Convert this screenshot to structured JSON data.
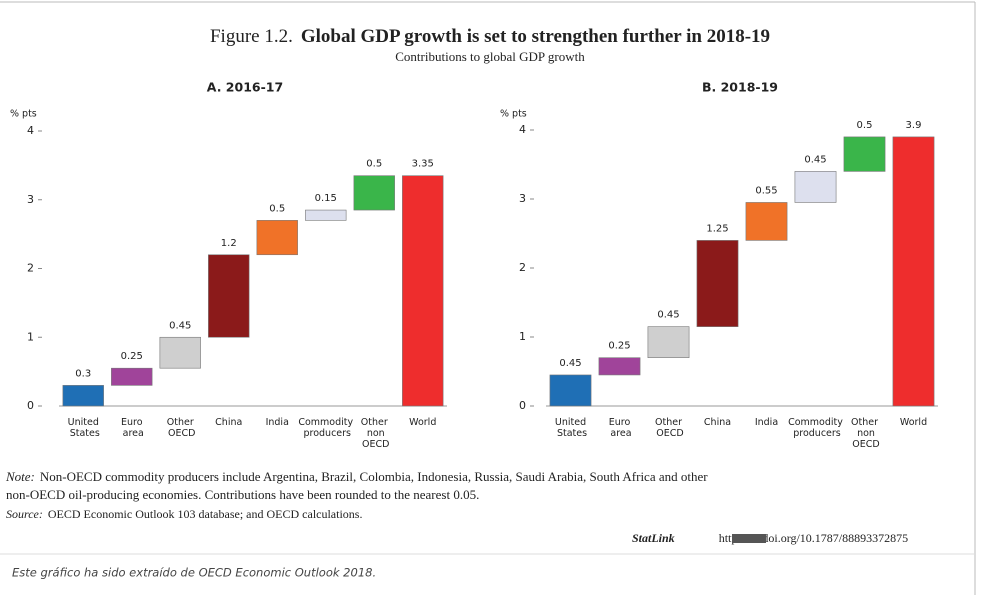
{
  "header": {
    "figure_label": "Figure 1.2.",
    "title": "Global GDP growth is set to strengthen further in 2018-19",
    "subtitle": "Contributions to global GDP growth"
  },
  "chart_data": [
    {
      "type": "waterfall",
      "title": "A. 2016-17",
      "y_label": "% pts",
      "categories": [
        "United States",
        "Euro area",
        "Other OECD",
        "China",
        "India",
        "Commodity producers",
        "Other non OECD",
        "World"
      ],
      "values": [
        0.3,
        0.25,
        0.45,
        1.2,
        0.5,
        0.15,
        0.5,
        3.35
      ],
      "colors": [
        "#1f6fb5",
        "#a0449a",
        "#cfcfcf",
        "#8b1a1a",
        "#f07228",
        "#dde0ee",
        "#3ab54a",
        "#ee2d2d"
      ],
      "ylim": [
        0,
        4
      ],
      "yticks": [
        0,
        1,
        2,
        3,
        4
      ]
    },
    {
      "type": "waterfall",
      "title": "B. 2018-19",
      "y_label": "% pts",
      "categories": [
        "United States",
        "Euro area",
        "Other OECD",
        "China",
        "India",
        "Commodity producers",
        "Other non OECD",
        "World"
      ],
      "values": [
        0.45,
        0.25,
        0.45,
        1.25,
        0.55,
        0.45,
        0.5,
        3.9
      ],
      "colors": [
        "#1f6fb5",
        "#a0449a",
        "#cfcfcf",
        "#8b1a1a",
        "#f07228",
        "#dde0ee",
        "#3ab54a",
        "#ee2d2d"
      ],
      "ylim": [
        0,
        4
      ],
      "yticks": [
        0,
        1,
        2,
        3,
        4
      ]
    }
  ],
  "notes": {
    "note_label": "Note:",
    "note_line1": "Non-OECD commodity producers include Argentina, Brazil, Colombia, Indonesia, Russia, Saudi Arabia, South Africa and other",
    "note_line2": "non-OECD oil-producing economies. Contributions have been rounded to the nearest 0.05.",
    "source_label": "Source:",
    "source": "OECD Economic Outlook 103 database; and OECD calculations.",
    "statlink_label": "StatLink",
    "statlink_url": "http://dx.doi.org/10.1787/88893372875"
  },
  "footer": "Este gráfico ha sido extraído de OECD Economic Outlook 2018."
}
